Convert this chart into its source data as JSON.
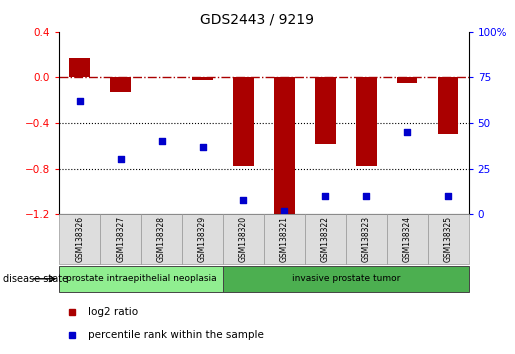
{
  "title": "GDS2443 / 9219",
  "samples": [
    "GSM138326",
    "GSM138327",
    "GSM138328",
    "GSM138329",
    "GSM138320",
    "GSM138321",
    "GSM138322",
    "GSM138323",
    "GSM138324",
    "GSM138325"
  ],
  "log2_ratio": [
    0.17,
    -0.13,
    0.0,
    -0.02,
    -0.78,
    -1.2,
    -0.58,
    -0.78,
    -0.05,
    -0.5
  ],
  "percentile_rank": [
    62,
    30,
    40,
    37,
    8,
    2,
    10,
    10,
    45,
    10
  ],
  "disease_state_groups": [
    {
      "label": "prostate intraepithelial neoplasia",
      "start": 0,
      "end": 4,
      "color": "#90EE90"
    },
    {
      "label": "invasive prostate tumor",
      "start": 4,
      "end": 10,
      "color": "#4CAF50"
    }
  ],
  "bar_color": "#AA0000",
  "dot_color": "#0000CC",
  "ylim_left": [
    -1.2,
    0.4
  ],
  "ylim_right": [
    0,
    100
  ],
  "yticks_left": [
    -1.2,
    -0.8,
    -0.4,
    0.0,
    0.4
  ],
  "yticks_right": [
    0,
    25,
    50,
    75,
    100
  ],
  "hline_y": 0.0,
  "dotted_lines": [
    -0.4,
    -0.8
  ],
  "background_color": "#ffffff",
  "plot_bg_color": "#ffffff",
  "legend_items": [
    {
      "label": "log2 ratio",
      "color": "#AA0000"
    },
    {
      "label": "percentile rank within the sample",
      "color": "#0000CC"
    }
  ],
  "disease_state_label": "disease state",
  "bar_width": 0.5
}
